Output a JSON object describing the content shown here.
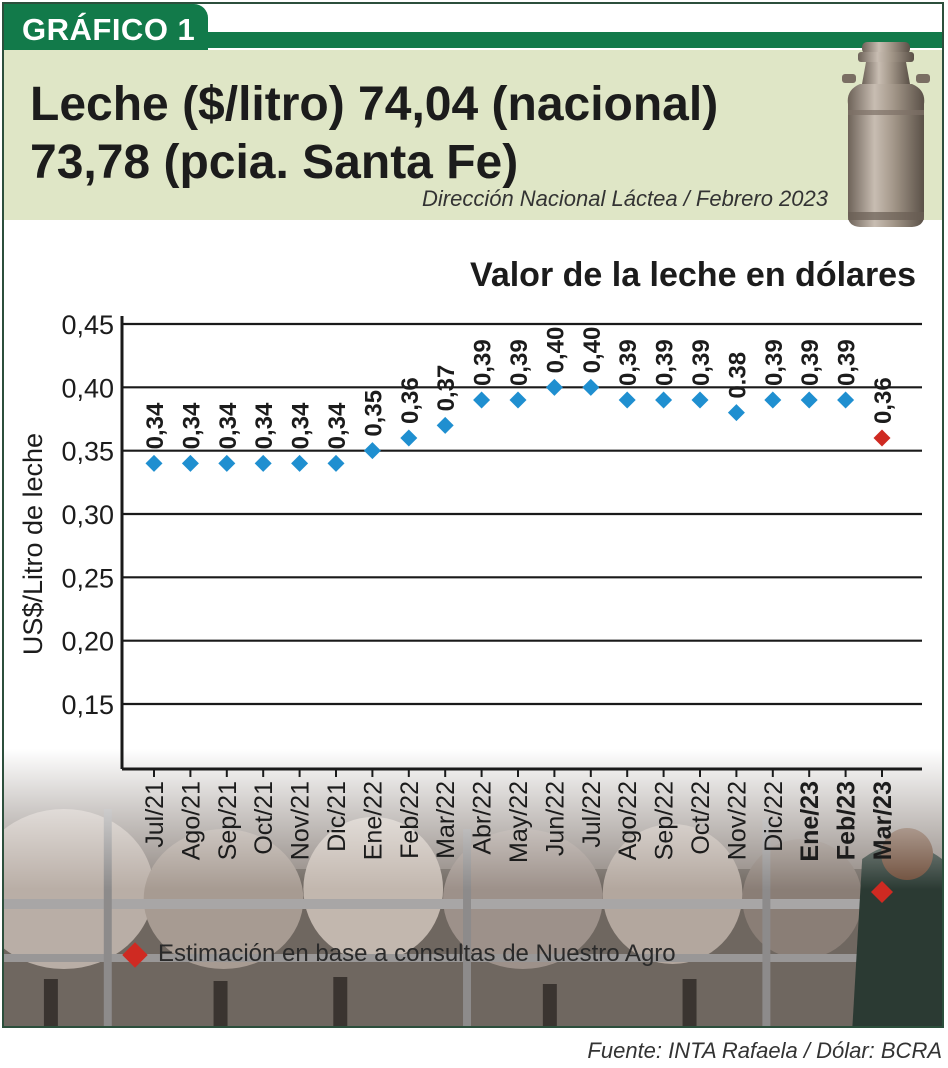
{
  "badge": "GRÁFICO 1",
  "header": {
    "title_line1": "Leche ($/litro) 74,04 (nacional)",
    "title_line2": "73,78 (pcia. Santa Fe)",
    "subtitle": "Dirección Nacional Láctea / Febrero 2023"
  },
  "chart_data": {
    "type": "scatter",
    "title": "Valor de la leche en dólares",
    "xlabel": "",
    "ylabel": "US$/Litro de leche",
    "ylim": [
      0.15,
      0.45
    ],
    "yticks": [
      "0,15",
      "0,20",
      "0,25",
      "0,30",
      "0,35",
      "0,40",
      "0,45"
    ],
    "ytick_values": [
      0.15,
      0.2,
      0.25,
      0.3,
      0.35,
      0.4,
      0.45
    ],
    "categories": [
      "Jul/21",
      "Ago/21",
      "Sep/21",
      "Oct/21",
      "Nov/21",
      "Dic/21",
      "Ene/22",
      "Feb/22",
      "Mar/22",
      "Abr/22",
      "May/22",
      "Jun/22",
      "Jul/22",
      "Ago/22",
      "Sep/22",
      "Oct/22",
      "Nov/22",
      "Dic/22",
      "Ene/23",
      "Feb/23",
      "Mar/23"
    ],
    "values": [
      0.34,
      0.34,
      0.34,
      0.34,
      0.34,
      0.34,
      0.35,
      0.36,
      0.37,
      0.39,
      0.39,
      0.4,
      0.4,
      0.39,
      0.39,
      0.39,
      0.38,
      0.39,
      0.39,
      0.39,
      0.36
    ],
    "labels": [
      "0,34",
      "0,34",
      "0,34",
      "0,34",
      "0,34",
      "0,34",
      "0,35",
      "0,36",
      "0,37",
      "0,39",
      "0,39",
      "0,40",
      "0,40",
      "0,39",
      "0,39",
      "0,39",
      "0.38",
      "0,39",
      "0,39",
      "0,39",
      "0,36"
    ],
    "estimated": [
      false,
      false,
      false,
      false,
      false,
      false,
      false,
      false,
      false,
      false,
      false,
      false,
      false,
      false,
      false,
      false,
      false,
      false,
      false,
      false,
      true
    ],
    "bold_categories": [
      "Ene/23",
      "Feb/23",
      "Mar/23"
    ],
    "grid": true,
    "colors": {
      "actual": "#1f8fd0",
      "estimate": "#cf2a22",
      "grid": "#1a1a1a"
    }
  },
  "note": "Estimación en base a consultas de Nuestro Agro",
  "source": "Fuente: INTA Rafaela / Dólar: BCRA"
}
